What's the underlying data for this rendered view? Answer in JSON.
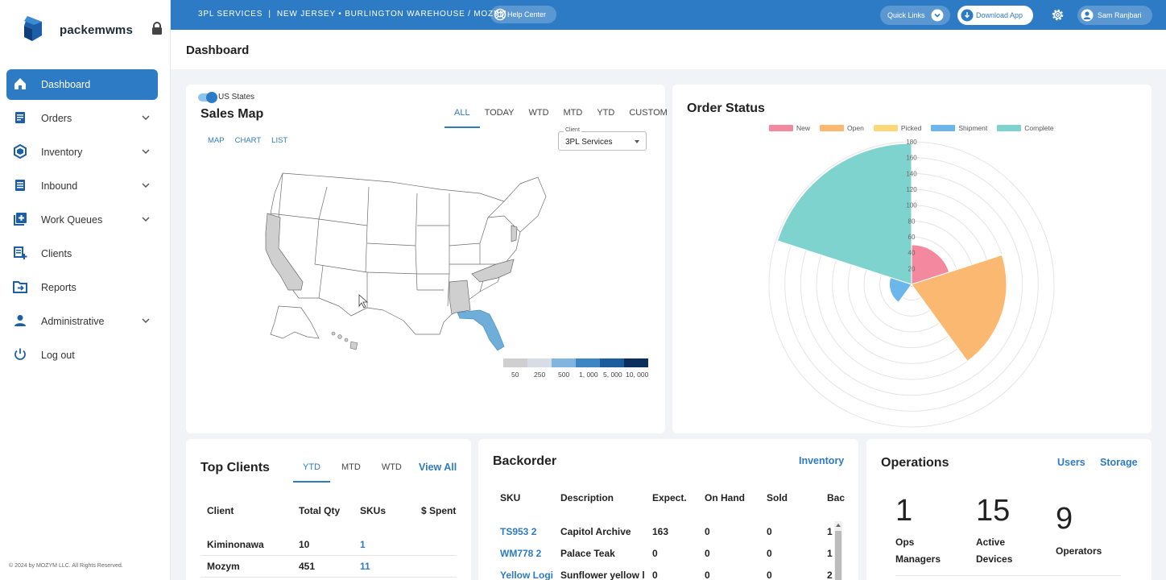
{
  "brand": {
    "name": "packemwms"
  },
  "sidebar": {
    "items": [
      {
        "label": "Dashboard"
      },
      {
        "label": "Orders"
      },
      {
        "label": "Inventory"
      },
      {
        "label": "Inbound"
      },
      {
        "label": "Work Queues"
      },
      {
        "label": "Clients"
      },
      {
        "label": "Reports"
      },
      {
        "label": "Administrative"
      },
      {
        "label": "Log out"
      }
    ],
    "copyright": "© 2024 by MOZYM LLC. All Rights Reserved."
  },
  "topbar": {
    "breadcrumb": "3PL SERVICES  |  NEW JERSEY • BURLINGTON WAREHOUSE / MOZYM",
    "help_label": "Help Center",
    "quick_links_label": "Quick Links",
    "download_label": "Download App",
    "user_name": "Sam Ranjbari",
    "accent": "#2d7bc4"
  },
  "page": {
    "title": "Dashboard"
  },
  "sales_map": {
    "toggle_label": "US States",
    "title": "Sales Map",
    "tabs": [
      "ALL",
      "TODAY",
      "WTD",
      "MTD",
      "YTD",
      "CUSTOM"
    ],
    "active_tab": "ALL",
    "view_tabs": [
      "MAP",
      "CHART",
      "LIST"
    ],
    "client_legend": "Client",
    "client_value": "3PL Services",
    "legend_labels": [
      "50",
      "250",
      "500",
      "1, 000",
      "5, 000",
      "10, 000"
    ],
    "legend_colors": [
      "#cfcfcf",
      "#d6dde4",
      "#7fb5de",
      "#3c86c4",
      "#1b5d9c",
      "#0b2e5c"
    ]
  },
  "order_status": {
    "title": "Order Status"
  },
  "chart_data": {
    "type": "polar-area",
    "title": "Order Status",
    "categories": [
      "New",
      "Open",
      "Picked",
      "Shipment",
      "Complete"
    ],
    "values": [
      50,
      120,
      4,
      28,
      178
    ],
    "colors": [
      "#f4889e",
      "#fbb870",
      "#fcd879",
      "#6bb6ea",
      "#7fd3cf"
    ],
    "r_ticks": [
      "20",
      "40",
      "60",
      "80",
      "100",
      "120",
      "140",
      "160",
      "180"
    ],
    "rlim": [
      0,
      180
    ],
    "legend_position": "top"
  },
  "top_clients": {
    "title": "Top Clients",
    "tabs": [
      "YTD",
      "MTD",
      "WTD"
    ],
    "active_tab": "YTD",
    "view_all": "View All",
    "columns": [
      "Client",
      "Total Qty",
      "SKUs",
      "$ Spent"
    ],
    "rows": [
      {
        "client": "Kiminonawa",
        "qty": "10",
        "skus": "1"
      },
      {
        "client": "Mozym",
        "qty": "451",
        "skus": "11"
      }
    ]
  },
  "backorder": {
    "title": "Backorder",
    "link": "Inventory",
    "columns": [
      "SKU",
      "Description",
      "Expect.",
      "On Hand",
      "Sold",
      "Bac"
    ],
    "rows": [
      {
        "sku": "TS953 2",
        "desc": "Capitol Archive",
        "expect": "163",
        "onhand": "0",
        "sold": "0",
        "back": "1"
      },
      {
        "sku": "WM778 2",
        "desc": "Palace Teak",
        "expect": "0",
        "onhand": "0",
        "sold": "0",
        "back": "1"
      },
      {
        "sku": "Yellow Logi",
        "desc": "Sunflower yellow l",
        "expect": "0",
        "onhand": "0",
        "sold": "0",
        "back": "2"
      }
    ]
  },
  "operations": {
    "title": "Operations",
    "links": [
      "Users",
      "Storage"
    ],
    "stats": [
      {
        "value": "1",
        "label1": "Ops",
        "label2": "Managers"
      },
      {
        "value": "15",
        "label1": "Active",
        "label2": "Devices"
      },
      {
        "value": "9",
        "label1": "Operators",
        "label2": ""
      }
    ]
  }
}
